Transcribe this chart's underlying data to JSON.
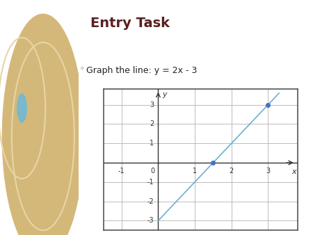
{
  "title": "Entry Task",
  "subtitle": "Graph the line: y = 2x - 3",
  "title_color": "#5a1f1f",
  "subtitle_color": "#222222",
  "bg_color": "#ffffff",
  "slide_bg_color": "#e8d5a3",
  "line_color": "#6baed6",
  "line_width": 1.2,
  "marker_color": "#4472c4",
  "marker_size": 4,
  "x_min": -1.5,
  "x_max": 3.8,
  "y_min": -3.5,
  "y_max": 3.8,
  "x_ticks": [
    -1,
    0,
    1,
    2,
    3
  ],
  "y_ticks": [
    -3,
    -2,
    -1,
    1,
    2,
    3
  ],
  "slope": 2,
  "intercept": -3,
  "plot_x_start": 0.0,
  "plot_x_end": 3.3,
  "points_x": [
    1.5,
    3
  ],
  "points_y": [
    0,
    3
  ],
  "grid_color": "#bbbbbb",
  "grid_bg_color": "#d8d8d8",
  "axis_color": "#333333",
  "border_color": "#555555",
  "circle1_color": "#d4b87a",
  "circle2_color": "#c9a85a",
  "circle_line_color": "#e8d5a3",
  "bullet_color": "#7ab8cc"
}
